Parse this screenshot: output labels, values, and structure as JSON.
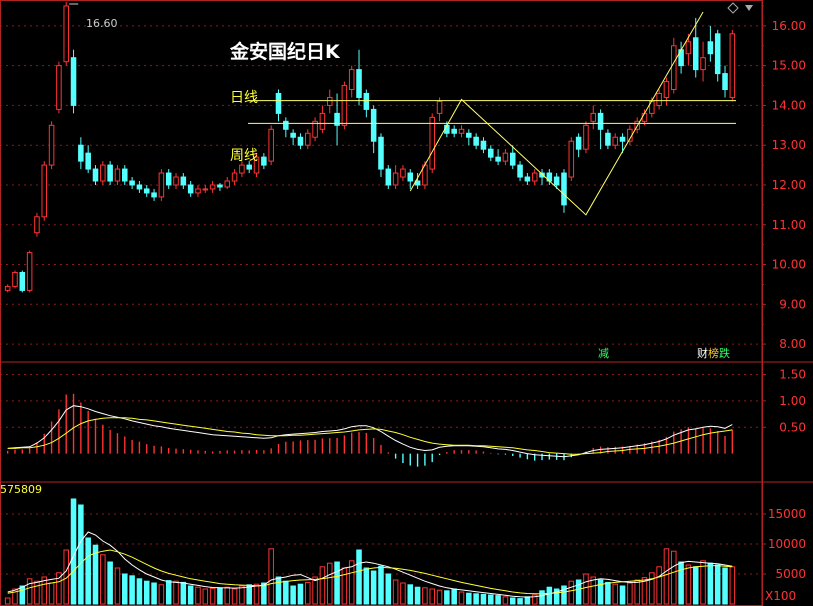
{
  "chart_data": [
    {
      "type": "candlestick",
      "title": "金安国纪日K",
      "ylim": [
        7.6,
        16.6
      ],
      "y_ticks": [
        "8.00",
        "9.00",
        "10.00",
        "11.00",
        "12.00",
        "13.00",
        "14.00",
        "15.00",
        "16.00"
      ],
      "peak_label": "16.60",
      "annotations": {
        "daily_line": "日线",
        "weekly_line": "周线"
      },
      "levels": {
        "daily": 14.12,
        "weekly": 13.55
      },
      "candles": [
        [
          9.35,
          9.45,
          9.3,
          9.5
        ],
        [
          9.45,
          9.8,
          9.4,
          9.85
        ],
        [
          9.8,
          9.35,
          9.3,
          9.85
        ],
        [
          9.35,
          10.3,
          9.3,
          10.35
        ],
        [
          10.8,
          11.2,
          10.7,
          11.3
        ],
        [
          11.2,
          12.5,
          11.1,
          12.6
        ],
        [
          12.5,
          13.5,
          12.4,
          13.6
        ],
        [
          13.9,
          15.0,
          13.8,
          15.1
        ],
        [
          15.1,
          16.5,
          15.0,
          16.6
        ],
        [
          15.2,
          14.0,
          13.8,
          15.4
        ],
        [
          13.0,
          12.6,
          12.4,
          13.2
        ],
        [
          12.8,
          12.4,
          12.3,
          13.0
        ],
        [
          12.4,
          12.1,
          12.0,
          12.5
        ],
        [
          12.1,
          12.5,
          12.0,
          12.6
        ],
        [
          12.5,
          12.1,
          12.0,
          12.6
        ],
        [
          12.1,
          12.4,
          12.0,
          12.5
        ],
        [
          12.4,
          12.1,
          12.0,
          12.5
        ],
        [
          12.1,
          12.0,
          11.9,
          12.2
        ],
        [
          12.0,
          11.9,
          11.8,
          12.1
        ],
        [
          11.9,
          11.8,
          11.7,
          12.0
        ],
        [
          11.8,
          11.7,
          11.6,
          11.9
        ],
        [
          11.7,
          12.3,
          11.6,
          12.4
        ],
        [
          12.3,
          12.0,
          11.9,
          12.4
        ],
        [
          12.0,
          12.2,
          11.9,
          12.3
        ],
        [
          12.2,
          12.0,
          11.9,
          12.3
        ],
        [
          12.0,
          11.8,
          11.7,
          12.1
        ],
        [
          11.8,
          11.9,
          11.7,
          12.0
        ],
        [
          11.9,
          11.9,
          11.8,
          12.0
        ],
        [
          11.9,
          12.0,
          11.8,
          12.1
        ],
        [
          12.0,
          11.95,
          11.85,
          12.05
        ],
        [
          11.95,
          12.1,
          11.9,
          12.2
        ],
        [
          12.1,
          12.3,
          12.0,
          12.4
        ],
        [
          12.3,
          12.5,
          12.2,
          12.6
        ],
        [
          12.5,
          12.4,
          12.3,
          12.6
        ],
        [
          12.3,
          12.7,
          12.2,
          12.8
        ],
        [
          12.7,
          12.5,
          12.4,
          12.8
        ],
        [
          12.6,
          13.4,
          12.5,
          13.5
        ],
        [
          14.3,
          13.8,
          13.6,
          14.4
        ],
        [
          13.6,
          13.4,
          13.2,
          13.7
        ],
        [
          13.3,
          13.2,
          13.0,
          13.4
        ],
        [
          13.2,
          13.0,
          12.9,
          13.3
        ],
        [
          13.0,
          13.3,
          12.9,
          13.4
        ],
        [
          13.2,
          13.6,
          13.1,
          13.7
        ],
        [
          13.4,
          13.8,
          13.3,
          14.0
        ],
        [
          14.0,
          14.2,
          13.8,
          14.4
        ],
        [
          13.8,
          13.5,
          13.0,
          14.3
        ],
        [
          13.5,
          14.5,
          13.4,
          14.6
        ],
        [
          14.4,
          14.9,
          14.2,
          15.0
        ],
        [
          14.9,
          14.2,
          14.0,
          15.4
        ],
        [
          14.3,
          13.9,
          13.7,
          14.4
        ],
        [
          13.9,
          13.1,
          12.8,
          14.0
        ],
        [
          13.2,
          12.4,
          12.2,
          13.3
        ],
        [
          12.4,
          12.0,
          11.9,
          12.5
        ],
        [
          12.0,
          12.3,
          11.9,
          12.5
        ],
        [
          12.2,
          12.4,
          12.1,
          12.5
        ],
        [
          12.3,
          12.1,
          11.9,
          12.4
        ],
        [
          12.1,
          12.0,
          11.9,
          12.3
        ],
        [
          12.0,
          12.5,
          11.9,
          12.6
        ],
        [
          12.4,
          13.7,
          12.3,
          13.8
        ],
        [
          13.8,
          14.1,
          13.6,
          14.2
        ],
        [
          13.5,
          13.3,
          13.2,
          13.6
        ],
        [
          13.4,
          13.3,
          13.2,
          13.5
        ],
        [
          13.3,
          13.4,
          13.2,
          13.5
        ],
        [
          13.3,
          13.2,
          13.0,
          13.4
        ],
        [
          13.2,
          13.0,
          12.9,
          13.3
        ],
        [
          13.1,
          12.9,
          12.8,
          13.2
        ],
        [
          12.9,
          12.7,
          12.6,
          13.0
        ],
        [
          12.7,
          12.6,
          12.5,
          12.9
        ],
        [
          12.6,
          12.8,
          12.5,
          12.9
        ],
        [
          12.8,
          12.5,
          12.4,
          13.0
        ],
        [
          12.5,
          12.2,
          12.1,
          12.6
        ],
        [
          12.2,
          12.1,
          12.0,
          12.3
        ],
        [
          12.1,
          12.3,
          12.0,
          12.4
        ],
        [
          12.3,
          12.2,
          12.0,
          12.4
        ],
        [
          12.3,
          12.1,
          12.0,
          12.4
        ],
        [
          12.2,
          12.0,
          11.9,
          12.3
        ],
        [
          12.3,
          11.5,
          11.3,
          12.4
        ],
        [
          12.2,
          13.1,
          12.1,
          13.2
        ],
        [
          13.2,
          12.9,
          12.7,
          13.3
        ],
        [
          12.9,
          13.5,
          12.8,
          13.6
        ],
        [
          13.6,
          13.8,
          13.4,
          14.0
        ],
        [
          13.8,
          13.4,
          12.9,
          13.9
        ],
        [
          13.3,
          13.0,
          12.9,
          13.4
        ],
        [
          13.0,
          13.2,
          12.9,
          13.3
        ],
        [
          13.2,
          13.1,
          12.8,
          13.3
        ],
        [
          13.1,
          13.4,
          13.0,
          13.5
        ],
        [
          13.4,
          13.6,
          13.3,
          13.7
        ],
        [
          13.6,
          13.8,
          13.5,
          13.9
        ],
        [
          13.8,
          14.1,
          13.7,
          14.2
        ],
        [
          14.0,
          14.3,
          13.9,
          14.4
        ],
        [
          14.2,
          14.6,
          14.0,
          14.7
        ],
        [
          14.4,
          15.5,
          14.3,
          15.7
        ],
        [
          15.4,
          15.0,
          14.8,
          15.6
        ],
        [
          15.3,
          15.6,
          15.0,
          15.8
        ],
        [
          15.7,
          14.9,
          14.7,
          16.2
        ],
        [
          14.9,
          15.2,
          14.6,
          15.6
        ],
        [
          15.6,
          15.3,
          15.1,
          16.0
        ],
        [
          15.8,
          14.8,
          14.6,
          15.9
        ],
        [
          14.8,
          14.4,
          14.2,
          15.0
        ],
        [
          14.2,
          15.8,
          14.1,
          15.9
        ]
      ],
      "tags": {
        "reduce": "减",
        "finance": "财",
        "list": "榜",
        "fall": "跌"
      }
    },
    {
      "type": "macd",
      "ylim": [
        -0.5,
        1.7
      ],
      "y_ticks": [
        "0.50",
        "1.00",
        "1.50"
      ],
      "dif": [
        0.1,
        0.11,
        0.12,
        0.13,
        0.2,
        0.3,
        0.45,
        0.62,
        0.83,
        0.91,
        0.89,
        0.85,
        0.8,
        0.76,
        0.72,
        0.69,
        0.66,
        0.62,
        0.59,
        0.56,
        0.53,
        0.51,
        0.48,
        0.46,
        0.44,
        0.42,
        0.4,
        0.38,
        0.36,
        0.35,
        0.34,
        0.33,
        0.32,
        0.31,
        0.3,
        0.29,
        0.3,
        0.34,
        0.36,
        0.37,
        0.38,
        0.39,
        0.4,
        0.42,
        0.43,
        0.44,
        0.47,
        0.51,
        0.53,
        0.53,
        0.49,
        0.42,
        0.33,
        0.25,
        0.18,
        0.12,
        0.08,
        0.06,
        0.07,
        0.12,
        0.14,
        0.15,
        0.15,
        0.15,
        0.14,
        0.13,
        0.11,
        0.09,
        0.08,
        0.06,
        0.03,
        0.0,
        -0.02,
        -0.03,
        -0.04,
        -0.05,
        -0.06,
        -0.04,
        -0.02,
        0.02,
        0.06,
        0.08,
        0.09,
        0.1,
        0.11,
        0.13,
        0.15,
        0.17,
        0.2,
        0.23,
        0.28,
        0.35,
        0.4,
        0.45,
        0.47,
        0.5,
        0.52,
        0.51,
        0.48,
        0.55
      ],
      "dea": [
        0.1,
        0.1,
        0.11,
        0.11,
        0.13,
        0.16,
        0.21,
        0.29,
        0.39,
        0.49,
        0.57,
        0.62,
        0.65,
        0.67,
        0.68,
        0.68,
        0.68,
        0.67,
        0.65,
        0.64,
        0.62,
        0.6,
        0.58,
        0.56,
        0.54,
        0.52,
        0.5,
        0.48,
        0.46,
        0.44,
        0.42,
        0.41,
        0.39,
        0.38,
        0.36,
        0.35,
        0.34,
        0.34,
        0.34,
        0.35,
        0.35,
        0.36,
        0.37,
        0.38,
        0.39,
        0.4,
        0.41,
        0.43,
        0.45,
        0.46,
        0.47,
        0.46,
        0.43,
        0.4,
        0.36,
        0.31,
        0.27,
        0.23,
        0.2,
        0.18,
        0.17,
        0.16,
        0.16,
        0.16,
        0.15,
        0.15,
        0.14,
        0.13,
        0.12,
        0.11,
        0.09,
        0.07,
        0.06,
        0.04,
        0.02,
        0.01,
        0.0,
        -0.01,
        -0.01,
        0.0,
        0.01,
        0.02,
        0.04,
        0.05,
        0.06,
        0.08,
        0.09,
        0.1,
        0.12,
        0.14,
        0.17,
        0.2,
        0.24,
        0.28,
        0.32,
        0.36,
        0.39,
        0.41,
        0.43,
        0.45
      ]
    },
    {
      "type": "volume",
      "vol_label": "575809",
      "unit_label": "X100",
      "ylim": [
        0,
        20000
      ],
      "y_ticks": [
        "5000",
        "10000",
        "15000"
      ],
      "values": [
        1000,
        2500,
        3000,
        4200,
        3800,
        4500,
        3500,
        5200,
        9000,
        17500,
        16500,
        11000,
        9800,
        8200,
        7000,
        6000,
        5000,
        4700,
        4200,
        3800,
        3500,
        3200,
        3900,
        3800,
        3600,
        3000,
        2800,
        2500,
        2600,
        2700,
        2800,
        2500,
        3000,
        3200,
        3300,
        3500,
        9200,
        4500,
        3800,
        3000,
        3300,
        3600,
        4500,
        6200,
        6800,
        7000,
        6000,
        7200,
        9000,
        6000,
        5500,
        6300,
        5000,
        4000,
        3500,
        3200,
        2800,
        2700,
        2500,
        2300,
        2200,
        2500,
        2000,
        1800,
        1700,
        1600,
        1500,
        1400,
        1200,
        1000,
        900,
        1200,
        1500,
        2200,
        2800,
        2500,
        3000,
        3800,
        4000,
        5000,
        4500,
        4000,
        3600,
        3300,
        3000,
        3500,
        4000,
        4400,
        5200,
        6200,
        9200,
        8800,
        7000,
        6500,
        6200,
        7200,
        6800,
        6500,
        6000,
        6200
      ],
      "ma_short": [
        2000,
        2300,
        2800,
        3400,
        3600,
        3900,
        4100,
        4300,
        5500,
        8000,
        10500,
        12000,
        11500,
        10500,
        9800,
        8800,
        7500,
        6500,
        5700,
        5000,
        4500,
        4000,
        3700,
        3600,
        3500,
        3300,
        3100,
        2900,
        2750,
        2700,
        2680,
        2650,
        2700,
        2850,
        3000,
        3150,
        4000,
        4300,
        4500,
        4800,
        4900,
        4400,
        3900,
        4300,
        4900,
        5400,
        6000,
        6200,
        6800,
        7000,
        6800,
        6500,
        6200,
        5800,
        5300,
        4800,
        4300,
        3800,
        3400,
        3000,
        2700,
        2500,
        2350,
        2200,
        2050,
        1900,
        1750,
        1600,
        1450,
        1300,
        1200,
        1150,
        1200,
        1400,
        1700,
        2000,
        2400,
        2800,
        3200,
        3700,
        4000,
        4200,
        4100,
        3900,
        3700,
        3600,
        3600,
        3800,
        4100,
        4600,
        5500,
        6300,
        6900,
        7100,
        7000,
        6900,
        6800,
        6700,
        6500,
        6300
      ],
      "ma_long": [
        1800,
        2000,
        2300,
        2700,
        3000,
        3300,
        3500,
        3700,
        4300,
        5500,
        6800,
        8000,
        8500,
        8800,
        9000,
        8700,
        8300,
        7800,
        7200,
        6600,
        6000,
        5500,
        5100,
        4800,
        4500,
        4200,
        4000,
        3800,
        3600,
        3400,
        3300,
        3200,
        3150,
        3100,
        3050,
        3050,
        3400,
        3600,
        3750,
        3900,
        4000,
        4050,
        4100,
        4200,
        4400,
        4600,
        4900,
        5200,
        5500,
        5800,
        6000,
        6100,
        6050,
        5950,
        5800,
        5600,
        5350,
        5100,
        4800,
        4500,
        4200,
        3900,
        3600,
        3350,
        3100,
        2850,
        2600,
        2400,
        2200,
        2000,
        1850,
        1750,
        1700,
        1700,
        1750,
        1850,
        2000,
        2200,
        2450,
        2750,
        3000,
        3250,
        3450,
        3600,
        3700,
        3800,
        3900,
        4000,
        4200,
        4500,
        4900,
        5300,
        5700,
        6000,
        6200,
        6300,
        6400,
        6400,
        6300,
        6200
      ]
    }
  ]
}
